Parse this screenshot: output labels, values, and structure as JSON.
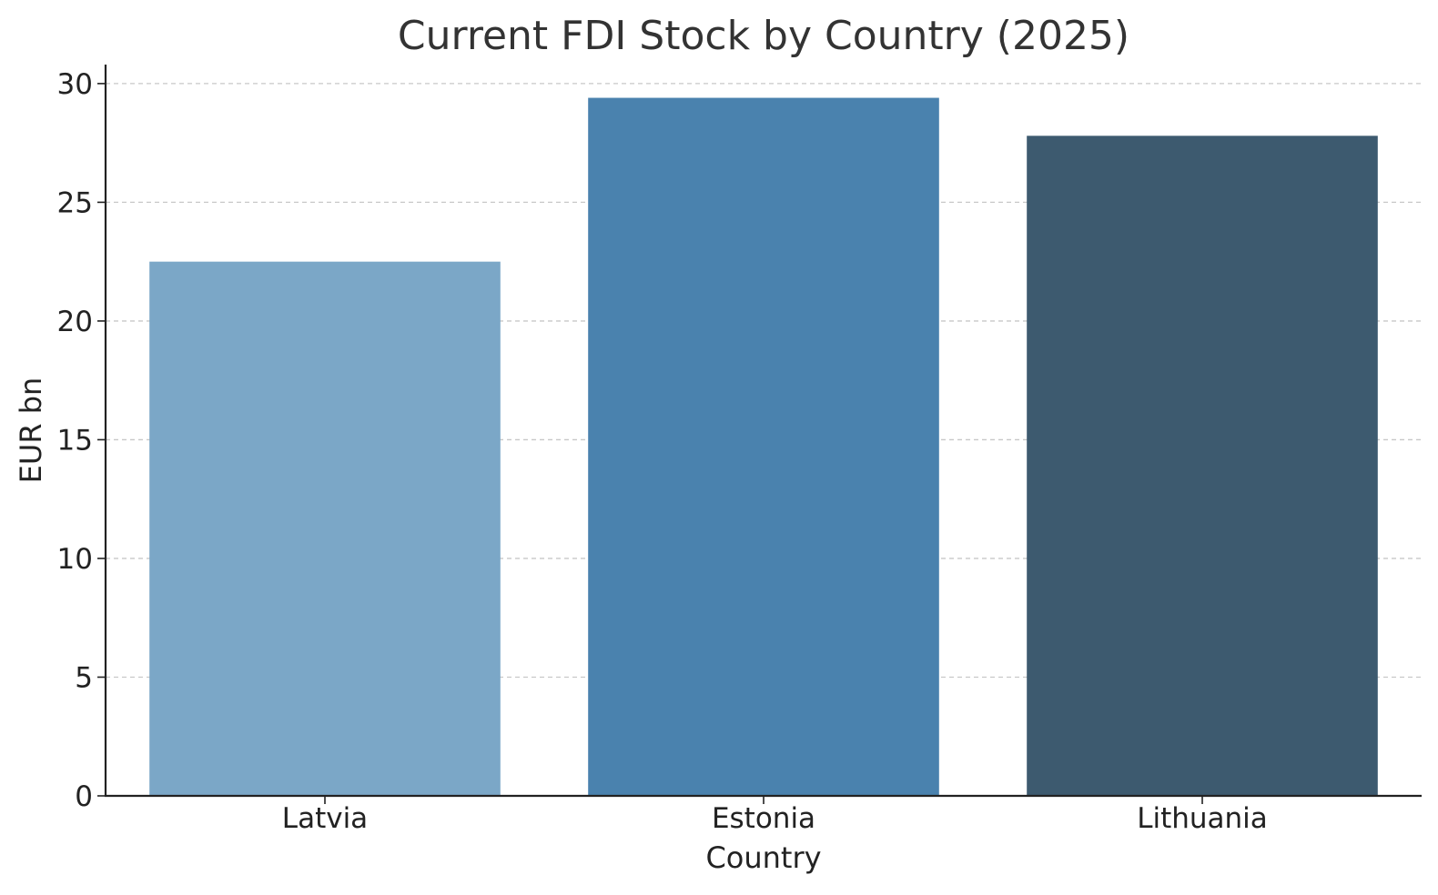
{
  "chart_data": {
    "type": "bar",
    "title": "Current FDI Stock by Country (2025)",
    "xlabel": "Country",
    "ylabel": "EUR bn",
    "categories": [
      "Latvia",
      "Estonia",
      "Lithuania"
    ],
    "values": [
      22.5,
      29.4,
      27.8
    ],
    "colors": [
      "#7ba7c7",
      "#4a82ae",
      "#3d5a6f"
    ],
    "ylim": [
      0,
      30.8
    ],
    "yticks": [
      0,
      5,
      10,
      15,
      20,
      25,
      30
    ],
    "grid": "y-dashed",
    "legend": "none"
  },
  "style": {
    "text_color": "#333333",
    "axis_color": "#222222",
    "grid_color": "#c8c8c8"
  }
}
